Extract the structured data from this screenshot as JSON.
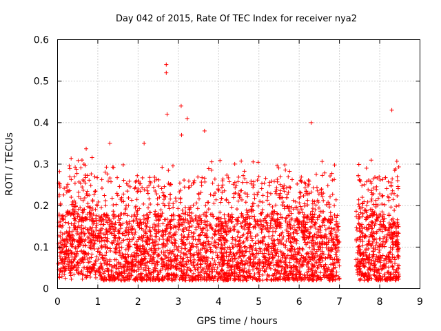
{
  "chart_data": {
    "type": "scatter",
    "title": "Day 042 of 2015, Rate Of TEC Index for receiver nya2",
    "xlabel": "GPS time / hours",
    "ylabel": "ROTI / TECUs",
    "xlim": [
      0,
      9
    ],
    "ylim": [
      0,
      0.6
    ],
    "xticks": [
      "0",
      "1",
      "2",
      "3",
      "4",
      "5",
      "6",
      "7",
      "8",
      "9"
    ],
    "yticks": [
      "0",
      "0.1",
      "0.2",
      "0.3",
      "0.4",
      "0.5",
      "0.6"
    ],
    "grid": true,
    "marker": "+",
    "color": "#ff0000",
    "data_gap_hours": [
      7.0,
      7.4
    ],
    "series": [
      {
        "name": "ROTI",
        "notable_points": [
          {
            "x": 2.7,
            "y": 0.54
          },
          {
            "x": 2.7,
            "y": 0.52
          },
          {
            "x": 2.72,
            "y": 0.42
          },
          {
            "x": 3.07,
            "y": 0.44
          },
          {
            "x": 3.22,
            "y": 0.41
          },
          {
            "x": 3.08,
            "y": 0.37
          },
          {
            "x": 3.65,
            "y": 0.38
          },
          {
            "x": 6.3,
            "y": 0.4
          },
          {
            "x": 8.3,
            "y": 0.43
          },
          {
            "x": 1.3,
            "y": 0.35
          },
          {
            "x": 2.15,
            "y": 0.35
          }
        ]
      }
    ]
  }
}
